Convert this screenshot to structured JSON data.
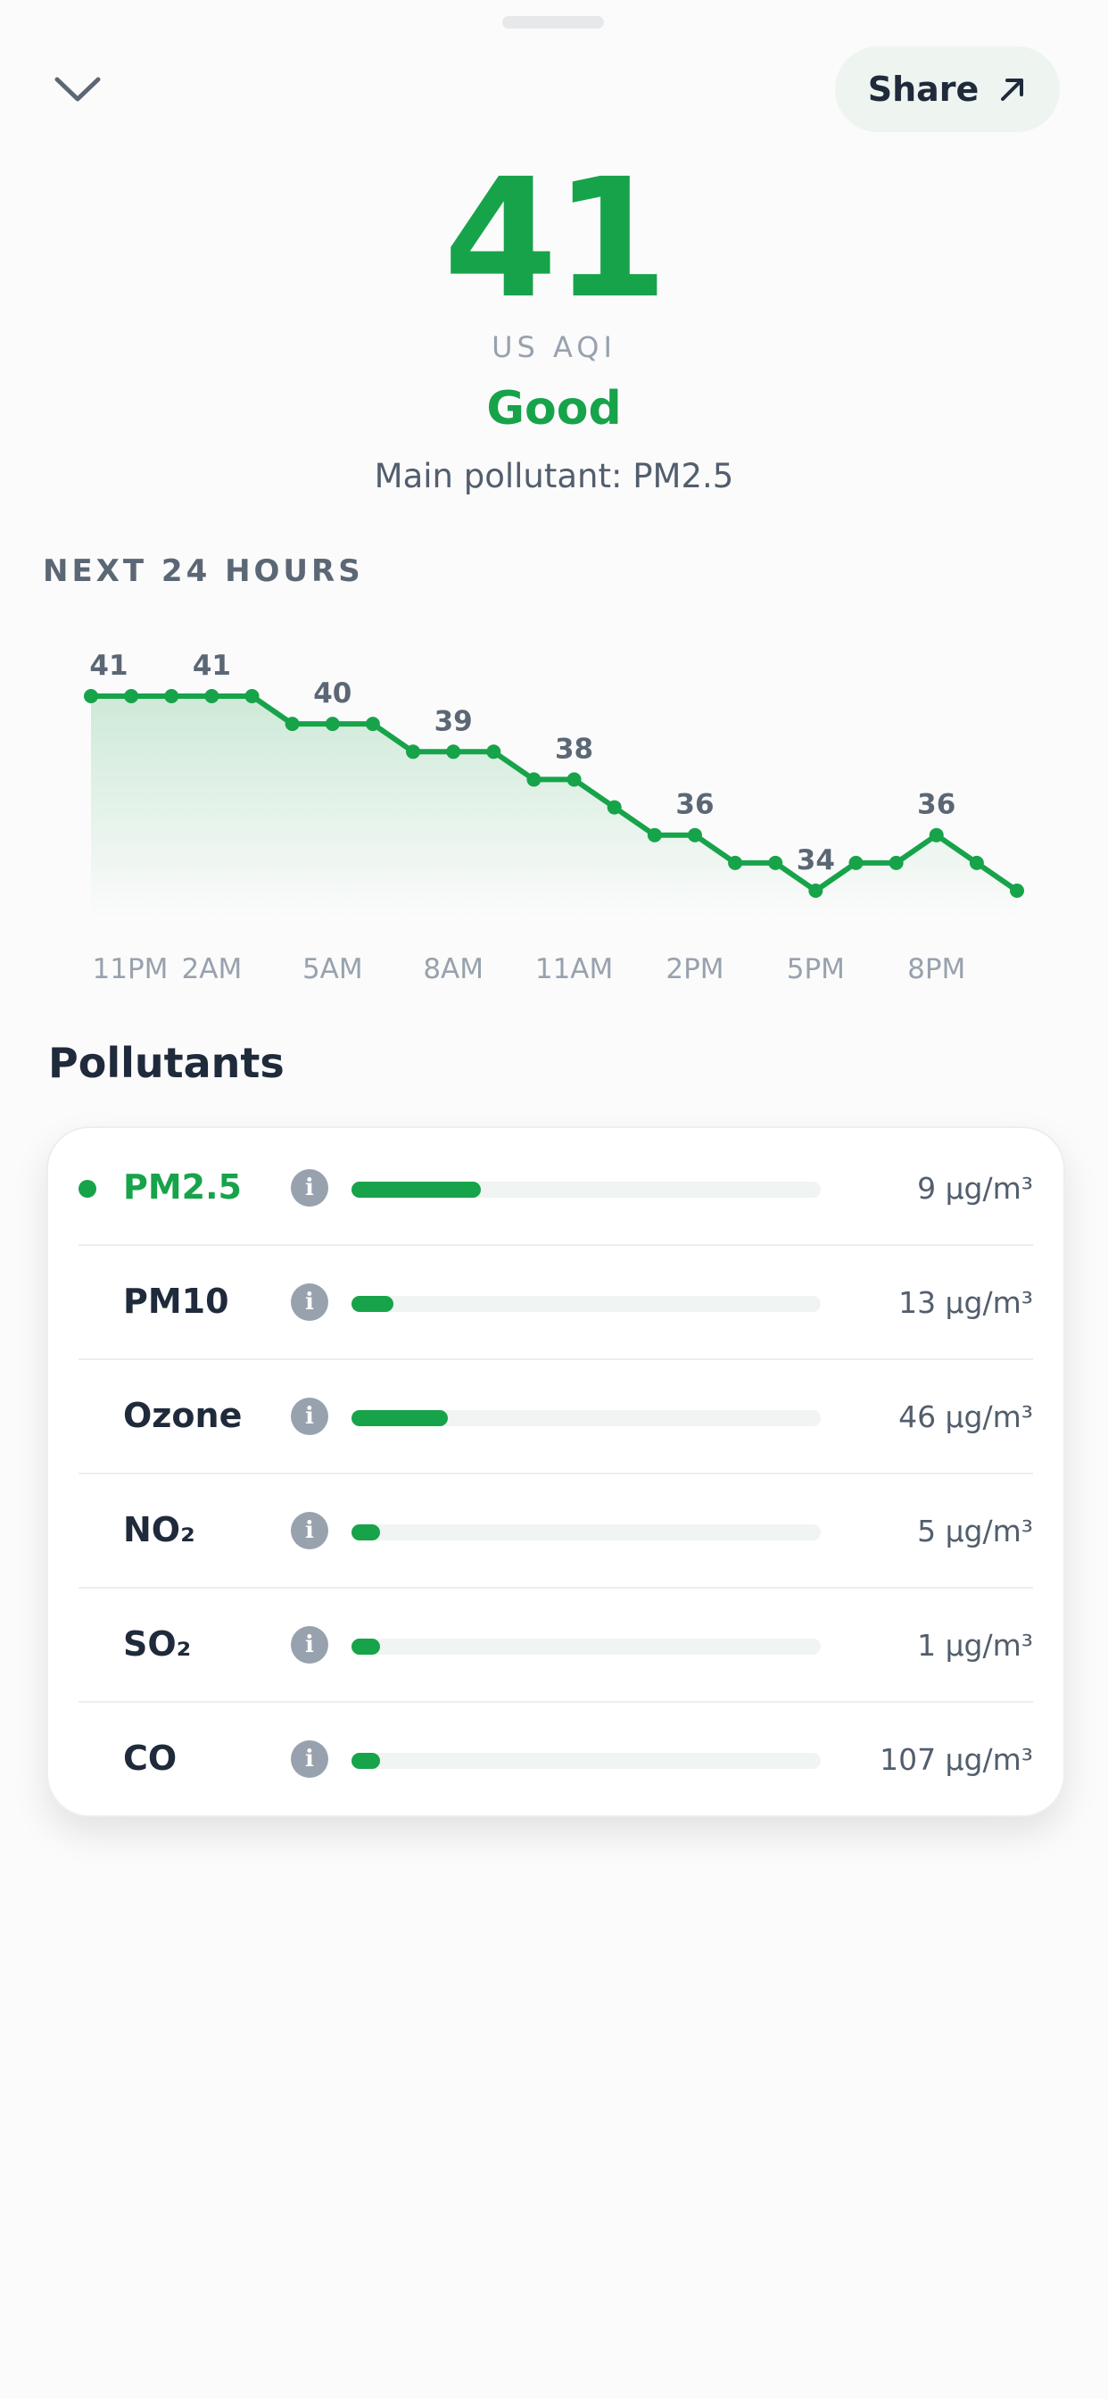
{
  "header": {
    "close_icon": "chevron-down-icon",
    "share_label": "Share",
    "share_icon": "arrow-up-right-icon"
  },
  "aqi": {
    "value": "41",
    "unit": "US AQI",
    "status": "Good",
    "main_pollutant": "Main pollutant: PM2.5"
  },
  "forecast": {
    "section_title": "NEXT 24 HOURS"
  },
  "chart_data": {
    "type": "area",
    "title": "",
    "xlabel": "",
    "ylabel": "",
    "x_tick_labels": [
      "11PM",
      "2AM",
      "5AM",
      "8AM",
      "11AM",
      "2PM",
      "5PM",
      "8PM"
    ],
    "values": [
      41,
      41,
      41,
      41,
      41,
      40,
      40,
      40,
      39,
      39,
      39,
      38,
      38,
      37,
      36,
      36,
      35,
      35,
      34,
      35,
      35,
      36,
      35,
      34
    ],
    "data_labels": [
      {
        "index": 0,
        "label": "41"
      },
      {
        "index": 3,
        "label": "41"
      },
      {
        "index": 6,
        "label": "40"
      },
      {
        "index": 9,
        "label": "39"
      },
      {
        "index": 12,
        "label": "38"
      },
      {
        "index": 15,
        "label": "36"
      },
      {
        "index": 18,
        "label": "34"
      },
      {
        "index": 21,
        "label": "36"
      }
    ],
    "grid": false,
    "legend": "none",
    "color": "#17a34a"
  },
  "pollutants": {
    "title": "Pollutants",
    "info_icon": "info-icon",
    "info_glyph": "i",
    "accent_color": "#17a34a",
    "items": [
      {
        "name": "PM2.5",
        "value": "9 µg/m³",
        "level": 0.275,
        "active": true
      },
      {
        "name": "PM10",
        "value": "13 µg/m³",
        "level": 0.09,
        "active": false
      },
      {
        "name": "Ozone",
        "value": "46 µg/m³",
        "level": 0.205,
        "active": false
      },
      {
        "name": "NO₂",
        "value": "5 µg/m³",
        "level": 0.06,
        "active": false
      },
      {
        "name": "SO₂",
        "value": "1 µg/m³",
        "level": 0.06,
        "active": false
      },
      {
        "name": "CO",
        "value": "107 µg/m³",
        "level": 0.06,
        "active": false
      }
    ]
  }
}
